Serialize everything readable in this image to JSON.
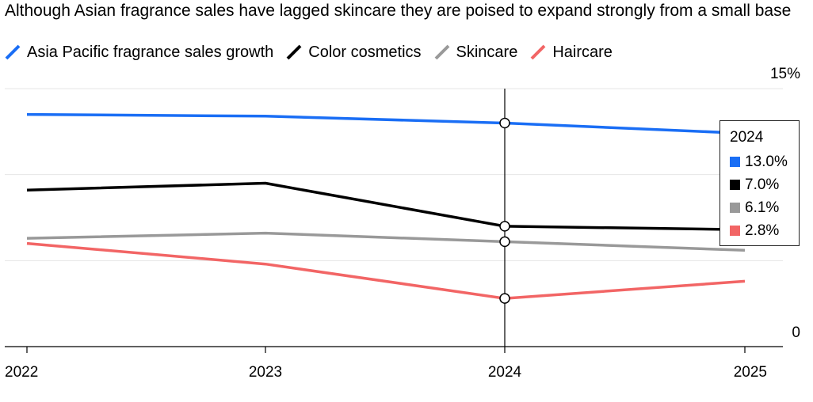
{
  "chart_data": {
    "type": "line",
    "title": "Although Asian fragrance sales have lagged skincare they are poised to expand strongly from a small base",
    "x": [
      "2022",
      "2023",
      "2024",
      "2025"
    ],
    "series": [
      {
        "name": "Asia Pacific fragrance sales growth",
        "color": "#1a6ef5",
        "values": [
          13.5,
          13.4,
          13.0,
          12.4
        ]
      },
      {
        "name": "Color cosmetics",
        "color": "#000000",
        "values": [
          9.1,
          9.5,
          7.0,
          6.8
        ]
      },
      {
        "name": "Skincare",
        "color": "#999999",
        "values": [
          6.3,
          6.6,
          6.1,
          5.6
        ]
      },
      {
        "name": "Haircare",
        "color": "#f26565",
        "values": [
          6.0,
          4.8,
          2.8,
          3.8
        ]
      }
    ],
    "y_ticks": [
      "15%",
      "",
      "",
      "0"
    ],
    "ylim": [
      0,
      15
    ],
    "grid": true,
    "legend": "top",
    "highlight": {
      "x": "2024",
      "label": "2024",
      "values": [
        "13.0%",
        "7.0%",
        "6.1%",
        "2.8%"
      ]
    }
  }
}
